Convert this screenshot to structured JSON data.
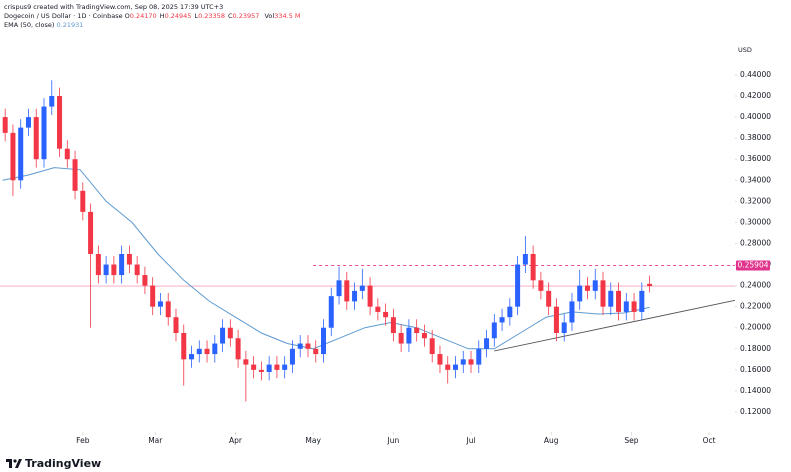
{
  "header": {
    "credit": "crispus9 created with TradingView.com, Sep 08, 2025 17:39 UTC+3",
    "symbol": "Dogecoin / US Dollar · 1D · Coinbase",
    "ohlc": [
      {
        "label": "O",
        "value": "0.24170"
      },
      {
        "label": "H",
        "value": "0.24945"
      },
      {
        "label": "L",
        "value": "0.23358"
      },
      {
        "label": "C",
        "value": "0.23957"
      }
    ],
    "vol_label": "Vol",
    "vol": "334.5 M",
    "ema_label": "EMA (50, close)",
    "ema_value": "0.21931",
    "currency": "USD"
  },
  "logo": "TradingView",
  "chart_data": {
    "type": "candlestick",
    "x": [
      1,
      4,
      7,
      10,
      13,
      16,
      19,
      22,
      25,
      28,
      31,
      34,
      37,
      40,
      43,
      46,
      49,
      52,
      55,
      58,
      61,
      64,
      67,
      70,
      73,
      76,
      79,
      82,
      85,
      88,
      91,
      94,
      97,
      100,
      103,
      106,
      109,
      112,
      115,
      118,
      121,
      124,
      127,
      130,
      133,
      136,
      139,
      142,
      145,
      148,
      151,
      154,
      157,
      160,
      163,
      166,
      169,
      172,
      175,
      178,
      181,
      184,
      187,
      190,
      193,
      196,
      199,
      202,
      205,
      208,
      211,
      214,
      217,
      220,
      223,
      226,
      229,
      232,
      235,
      238,
      241,
      244,
      247,
      250
    ],
    "open": [
      0.4,
      0.385,
      0.34,
      0.39,
      0.4,
      0.36,
      0.41,
      0.42,
      0.37,
      0.36,
      0.33,
      0.31,
      0.27,
      0.25,
      0.26,
      0.25,
      0.27,
      0.26,
      0.25,
      0.24,
      0.22,
      0.225,
      0.21,
      0.195,
      0.17,
      0.175,
      0.18,
      0.175,
      0.185,
      0.2,
      0.19,
      0.17,
      0.165,
      0.16,
      0.158,
      0.165,
      0.16,
      0.165,
      0.18,
      0.185,
      0.18,
      0.175,
      0.2,
      0.23,
      0.245,
      0.225,
      0.235,
      0.24,
      0.22,
      0.215,
      0.21,
      0.195,
      0.185,
      0.2,
      0.195,
      0.19,
      0.175,
      0.165,
      0.16,
      0.165,
      0.17,
      0.165,
      0.18,
      0.19,
      0.205,
      0.21,
      0.22,
      0.26,
      0.27,
      0.245,
      0.235,
      0.22,
      0.195,
      0.205,
      0.225,
      0.24,
      0.235,
      0.245,
      0.22,
      0.235,
      0.215,
      0.225,
      0.215,
      0.2417
    ],
    "high": [
      0.408,
      0.393,
      0.398,
      0.408,
      0.408,
      0.418,
      0.435,
      0.428,
      0.378,
      0.368,
      0.338,
      0.318,
      0.278,
      0.268,
      0.268,
      0.278,
      0.278,
      0.268,
      0.258,
      0.248,
      0.233,
      0.233,
      0.218,
      0.203,
      0.183,
      0.188,
      0.188,
      0.193,
      0.208,
      0.208,
      0.198,
      0.178,
      0.173,
      0.168,
      0.173,
      0.173,
      0.173,
      0.188,
      0.193,
      0.193,
      0.188,
      0.208,
      0.238,
      0.258,
      0.253,
      0.243,
      0.256,
      0.248,
      0.228,
      0.223,
      0.218,
      0.203,
      0.208,
      0.208,
      0.203,
      0.198,
      0.183,
      0.173,
      0.173,
      0.178,
      0.178,
      0.188,
      0.198,
      0.213,
      0.218,
      0.228,
      0.268,
      0.287,
      0.278,
      0.253,
      0.243,
      0.228,
      0.213,
      0.233,
      0.255,
      0.248,
      0.256,
      0.253,
      0.243,
      0.243,
      0.233,
      0.233,
      0.243,
      0.24945
    ],
    "low": [
      0.377,
      0.325,
      0.332,
      0.382,
      0.352,
      0.352,
      0.402,
      0.362,
      0.352,
      0.322,
      0.302,
      0.2,
      0.242,
      0.242,
      0.242,
      0.242,
      0.252,
      0.242,
      0.232,
      0.212,
      0.212,
      0.202,
      0.187,
      0.145,
      0.162,
      0.167,
      0.167,
      0.167,
      0.177,
      0.182,
      0.162,
      0.13,
      0.152,
      0.15,
      0.15,
      0.152,
      0.152,
      0.157,
      0.172,
      0.172,
      0.167,
      0.167,
      0.192,
      0.222,
      0.217,
      0.217,
      0.227,
      0.212,
      0.207,
      0.202,
      0.187,
      0.177,
      0.177,
      0.187,
      0.182,
      0.167,
      0.157,
      0.147,
      0.152,
      0.157,
      0.157,
      0.157,
      0.172,
      0.182,
      0.197,
      0.202,
      0.212,
      0.252,
      0.237,
      0.227,
      0.212,
      0.187,
      0.187,
      0.197,
      0.217,
      0.227,
      0.227,
      0.212,
      0.212,
      0.207,
      0.207,
      0.207,
      0.207,
      0.23358
    ],
    "close": [
      0.385,
      0.34,
      0.39,
      0.4,
      0.36,
      0.41,
      0.42,
      0.37,
      0.36,
      0.33,
      0.31,
      0.27,
      0.25,
      0.26,
      0.25,
      0.27,
      0.26,
      0.25,
      0.24,
      0.22,
      0.225,
      0.21,
      0.195,
      0.17,
      0.175,
      0.18,
      0.175,
      0.185,
      0.2,
      0.19,
      0.17,
      0.165,
      0.16,
      0.158,
      0.165,
      0.16,
      0.165,
      0.18,
      0.185,
      0.18,
      0.175,
      0.2,
      0.23,
      0.245,
      0.225,
      0.235,
      0.24,
      0.22,
      0.215,
      0.21,
      0.195,
      0.185,
      0.2,
      0.195,
      0.19,
      0.175,
      0.165,
      0.16,
      0.165,
      0.17,
      0.165,
      0.18,
      0.19,
      0.205,
      0.21,
      0.22,
      0.26,
      0.27,
      0.245,
      0.235,
      0.22,
      0.195,
      0.205,
      0.225,
      0.24,
      0.235,
      0.245,
      0.22,
      0.235,
      0.215,
      0.225,
      0.215,
      0.235,
      0.23957
    ],
    "up_color": "#2962ff",
    "down_color": "#f23645",
    "ema": {
      "name": "EMA (50, close)",
      "color": "#5d9ad1",
      "x": [
        0,
        10,
        20,
        30,
        40,
        50,
        60,
        70,
        80,
        90,
        100,
        110,
        120,
        130,
        140,
        150,
        160,
        170,
        180,
        190,
        200,
        210,
        220,
        230,
        240,
        250
      ],
      "values": [
        0.34,
        0.345,
        0.352,
        0.35,
        0.32,
        0.3,
        0.27,
        0.245,
        0.225,
        0.21,
        0.195,
        0.185,
        0.18,
        0.19,
        0.2,
        0.205,
        0.2,
        0.19,
        0.18,
        0.18,
        0.195,
        0.21,
        0.215,
        0.213,
        0.214,
        0.21931
      ]
    },
    "level": {
      "value": 0.25904,
      "label": "0.25904",
      "color": "#e0338c",
      "x_start": 120
    },
    "price_line_color": "#f5a3b8",
    "trendline": {
      "x": [
        190,
        283
      ],
      "values": [
        0.178,
        0.226
      ],
      "color": "#555555"
    },
    "xlim": [
      -1,
      283
    ],
    "ylim": [
      0.101,
      0.4675
    ],
    "xticks": [
      {
        "value": 31,
        "label": "Feb"
      },
      {
        "value": 59,
        "label": "Mar"
      },
      {
        "value": 90,
        "label": "Apr"
      },
      {
        "value": 120,
        "label": "May"
      },
      {
        "value": 151,
        "label": "Jun"
      },
      {
        "value": 181,
        "label": "Jul"
      },
      {
        "value": 212,
        "label": "Aug"
      },
      {
        "value": 243,
        "label": "Sep"
      },
      {
        "value": 273,
        "label": "Oct"
      }
    ],
    "yticks": [
      {
        "value": 0.12,
        "label": "0.12000"
      },
      {
        "value": 0.14,
        "label": "0.14000"
      },
      {
        "value": 0.16,
        "label": "0.16000"
      },
      {
        "value": 0.18,
        "label": "0.18000"
      },
      {
        "value": 0.2,
        "label": "0.20000"
      },
      {
        "value": 0.22,
        "label": "0.22000"
      },
      {
        "value": 0.24,
        "label": "0.24000"
      },
      {
        "value": 0.26,
        "label": "0.26000"
      },
      {
        "value": 0.28,
        "label": "0.28000"
      },
      {
        "value": 0.3,
        "label": "0.30000"
      },
      {
        "value": 0.32,
        "label": "0.32000"
      },
      {
        "value": 0.34,
        "label": "0.34000"
      },
      {
        "value": 0.36,
        "label": "0.36000"
      },
      {
        "value": 0.38,
        "label": "0.38000"
      },
      {
        "value": 0.4,
        "label": "0.40000"
      },
      {
        "value": 0.42,
        "label": "0.42000"
      },
      {
        "value": 0.44,
        "label": "0.44000"
      }
    ]
  }
}
